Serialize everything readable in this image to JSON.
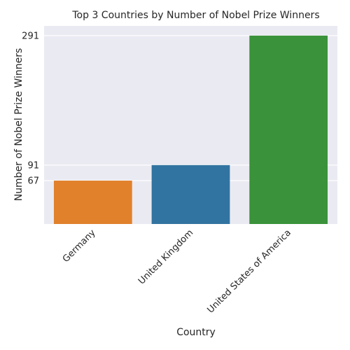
{
  "chart_data": {
    "type": "bar",
    "title": "Top 3 Countries by Number of Nobel Prize Winners",
    "xlabel": "Country",
    "ylabel": "Number of Nobel Prize Winners",
    "categories": [
      "Germany",
      "United Kingdom",
      "United States of America"
    ],
    "values": [
      67,
      91,
      291
    ],
    "colors": [
      "#e1812c",
      "#3274a1",
      "#3a923a"
    ],
    "yticks": [
      67,
      91,
      291
    ],
    "ylim": [
      0,
      306
    ],
    "grid": true,
    "background": "#eaeaf2"
  }
}
